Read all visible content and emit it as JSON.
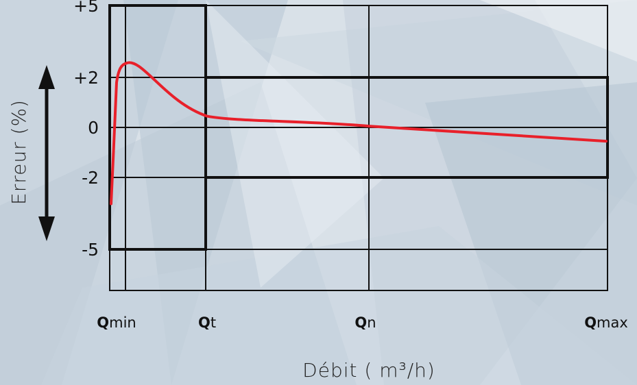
{
  "chart_data": {
    "type": "line",
    "title": "",
    "xlabel": "Débit ( m³/h)",
    "ylabel": "Erreur (%)",
    "x_ticks": [
      {
        "bold": "Q",
        "rest": "min"
      },
      {
        "bold": "Q",
        "rest": "t"
      },
      {
        "bold": "Q",
        "rest": "n"
      },
      {
        "bold": "Q",
        "rest": "max"
      }
    ],
    "y_ticks": [
      "+5",
      "+2",
      "0",
      "-2",
      "-5"
    ],
    "ylim": [
      -5,
      5
    ],
    "tolerance_zones": [
      {
        "range": "Qmin–Qt",
        "upper": 5,
        "lower": -5
      },
      {
        "range": "Qt–Qmax",
        "upper": 2,
        "lower": -2
      }
    ],
    "series": [
      {
        "color": "#e8202a",
        "points": [
          {
            "x": "Qmin-",
            "y": -3.1
          },
          {
            "x": "Qmin",
            "y": 1.8
          },
          {
            "x": "Qmin+",
            "y": 2.6
          },
          {
            "x": "Qt",
            "y": 0.45
          },
          {
            "x": "Qn",
            "y": 0.05
          },
          {
            "x": "Qmax",
            "y": -0.55
          }
        ]
      }
    ],
    "colors": {
      "curve": "#e8202a",
      "frame": "#111111",
      "background": "#d6dfe6"
    }
  }
}
